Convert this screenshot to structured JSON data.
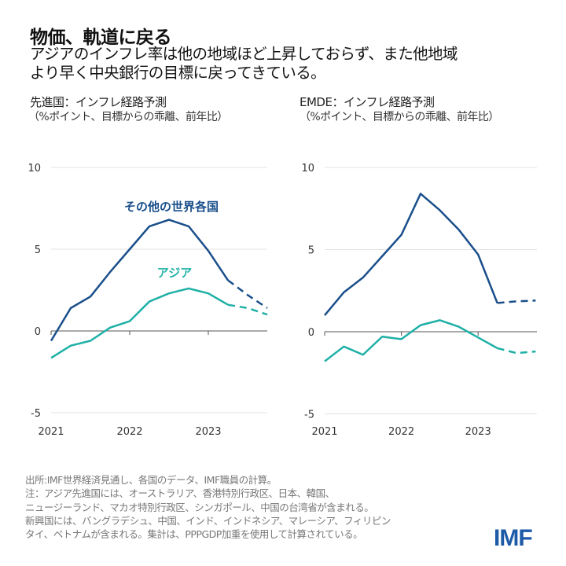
{
  "header": {
    "title": "物価、軌道に戻る",
    "subtitle_line1": "アジアのインフレ率は他の地域ほど上昇しておらず、また他地域",
    "subtitle_line2": "より早く中央銀行の目標に戻ってきている。"
  },
  "colors": {
    "rest_of_world": "#1a4f8b",
    "asia": "#1fb0a6",
    "grid": "#e3e3e3",
    "axis": "#555555"
  },
  "chart_data": [
    {
      "type": "line",
      "title": "先進国：インフレ経路予測",
      "ylabel": "（%ポイント、目標からの乖離、前年比）",
      "ylim": [
        -5,
        10
      ],
      "yticks": [
        "10",
        "5",
        "0",
        "-5"
      ],
      "xticks": [
        "2021",
        "2022",
        "2023"
      ],
      "x": [
        "2021Q1",
        "2021Q2",
        "2021Q3",
        "2021Q4",
        "2022Q1",
        "2022Q2",
        "2022Q3",
        "2022Q4",
        "2023Q1",
        "2023Q2",
        "2023Q3",
        "2023Q4"
      ],
      "forecast_from": "2023Q2",
      "grid": true,
      "series": [
        {
          "name": "その他の世界各国",
          "values": [
            -0.6,
            1.4,
            2.1,
            3.6,
            5.0,
            6.4,
            6.8,
            6.4,
            4.9,
            3.1,
            2.2,
            1.4
          ]
        },
        {
          "name": "アジア",
          "values": [
            -1.65,
            -0.9,
            -0.6,
            0.2,
            0.6,
            1.8,
            2.3,
            2.6,
            2.3,
            1.6,
            1.4,
            1.0
          ]
        }
      ]
    },
    {
      "type": "line",
      "title": "EMDE：インフレ経路予測",
      "ylabel": "（%ポイント、目標からの乖離、前年比）",
      "ylim": [
        -5,
        10
      ],
      "yticks": [
        "10",
        "5",
        "0",
        "-5"
      ],
      "xticks": [
        "2021",
        "2022",
        "2023"
      ],
      "x": [
        "2021Q1",
        "2021Q2",
        "2021Q3",
        "2021Q4",
        "2022Q1",
        "2022Q2",
        "2022Q3",
        "2022Q4",
        "2023Q1",
        "2023Q2",
        "2023Q3",
        "2023Q4"
      ],
      "forecast_from": "2023Q2",
      "grid": true,
      "series": [
        {
          "values": [
            1.0,
            2.4,
            3.3,
            4.6,
            5.9,
            8.4,
            7.4,
            6.2,
            4.7,
            1.75,
            1.85,
            1.9
          ]
        },
        {
          "values": [
            -1.8,
            -0.9,
            -1.4,
            -0.3,
            -0.45,
            0.4,
            0.7,
            0.3,
            -0.35,
            -1.0,
            -1.3,
            -1.2
          ]
        }
      ]
    }
  ],
  "footer": {
    "notes": [
      "出所:IMF世界経済見通し、各国のデータ、IMF職員の計算。",
      "注：アジア先進国には、オーストラリア、香港特別行政区、日本、韓国、",
      "ニュージーランド、マカオ特別行政区、シンガポール、中国の台湾省が含まれる。",
      "新興国には、バングラデシュ、中国、インド、インドネシア、マレーシア、フィリピン",
      "タイ、ベトナムが含まれる。集計は、PPPGDP加重を使用して計算されている。"
    ],
    "logo": "IMF"
  }
}
